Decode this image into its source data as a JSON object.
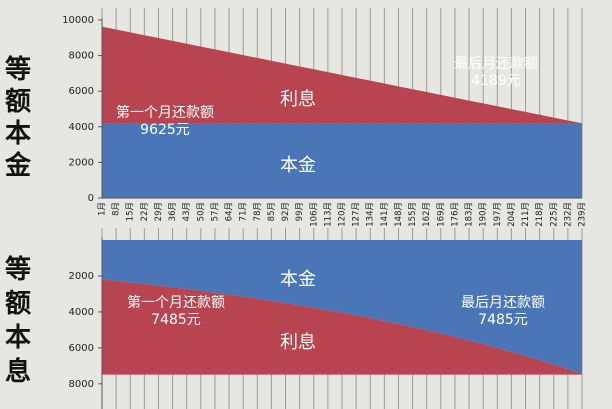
{
  "chart_data": [
    {
      "type": "area",
      "title": "等额本金",
      "ylim": [
        0,
        10000
      ],
      "yticks": [
        0,
        2000,
        4000,
        6000,
        8000,
        10000
      ],
      "categories": [
        "1月",
        "8月",
        "15月",
        "22月",
        "29月",
        "36月",
        "43月",
        "50月",
        "57月",
        "64月",
        "71月",
        "78月",
        "85月",
        "92月",
        "99月",
        "106月",
        "113月",
        "120月",
        "127月",
        "134月",
        "141月",
        "148月",
        "155月",
        "162月",
        "169月",
        "176月",
        "183月",
        "190月",
        "197月",
        "204月",
        "211月",
        "218月",
        "225月",
        "232月",
        "239月"
      ],
      "series": [
        {
          "name": "本金",
          "color": "#4a76b8",
          "values": [
            4167,
            4167,
            4167,
            4167,
            4167,
            4167,
            4167,
            4167,
            4167,
            4167,
            4167,
            4167,
            4167,
            4167,
            4167,
            4167,
            4167,
            4167,
            4167,
            4167,
            4167,
            4167,
            4167,
            4167,
            4167,
            4167,
            4167,
            4167,
            4167,
            4167,
            4167,
            4167,
            4167,
            4167,
            4167
          ]
        },
        {
          "name": "利息",
          "color": "#b8444f",
          "values": [
            5458,
            5298,
            5139,
            4979,
            4819,
            4660,
            4500,
            4340,
            4181,
            4021,
            3862,
            3702,
            3542,
            3383,
            3223,
            3063,
            2904,
            2744,
            2584,
            2425,
            2265,
            2105,
            1946,
            1786,
            1626,
            1467,
            1307,
            1147,
            988,
            828,
            669,
            509,
            349,
            190,
            30
          ]
        }
      ],
      "annotations": [
        "第一个月还款额",
        "9625元",
        "最后月还款额",
        "4189元"
      ]
    },
    {
      "type": "area",
      "title": "等额本息",
      "ylim": [
        0,
        9400
      ],
      "yticks": [
        2000,
        4000,
        6000,
        8000
      ],
      "inverted": true,
      "series": [
        {
          "name": "本金",
          "color": "#4a76b8",
          "values": [
            2200,
            2280,
            2364,
            2450,
            2539,
            2632,
            2728,
            2828,
            2931,
            3038,
            3149,
            3264,
            3383,
            3507,
            3635,
            3767,
            3905,
            4047,
            4195,
            4348,
            4507,
            4671,
            4842,
            5018,
            5202,
            5391,
            5588,
            5792,
            6003,
            6222,
            6450,
            6685,
            6929,
            7182,
            7444
          ]
        },
        {
          "name": "利息",
          "color": "#b8444f",
          "values": [
            5285,
            5205,
            5121,
            5035,
            4946,
            4853,
            4757,
            4657,
            4554,
            4447,
            4336,
            4221,
            4102,
            3978,
            3850,
            3718,
            3580,
            3438,
            3290,
            3137,
            2978,
            2814,
            2643,
            2467,
            2283,
            2094,
            1897,
            1693,
            1482,
            1263,
            1035,
            800,
            556,
            303,
            41
          ]
        }
      ],
      "annotations": [
        "第一个月还款额",
        "7485元",
        "最后月还款额",
        "7485元"
      ]
    }
  ]
}
